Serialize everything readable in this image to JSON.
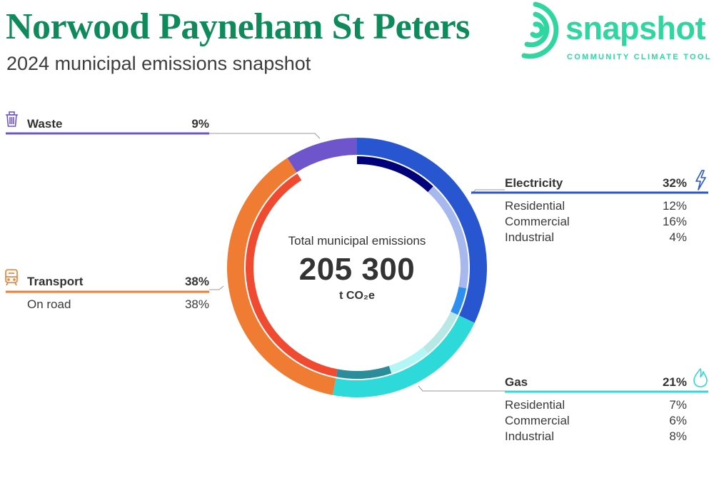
{
  "header": {
    "title": "Norwood Payneham St Peters",
    "subtitle": "2024 municipal emissions snapshot"
  },
  "brand": {
    "wordmark": "snapshot",
    "tagline": "COMMUNITY CLIMATE TOOL",
    "color": "#2fd6a0"
  },
  "chart_data": {
    "type": "pie",
    "subtype": "donut",
    "center": {
      "label": "Total municipal emissions",
      "value": "205 300",
      "unit": "t CO₂e"
    },
    "categories": [
      {
        "key": "electricity",
        "name": "Electricity",
        "percent": 32,
        "percent_label": "32%",
        "icon": "lightning-icon",
        "color": "#2855d0",
        "subcategories": [
          {
            "name": "Residential",
            "percent": 12,
            "percent_label": "12%",
            "color": "#00007a"
          },
          {
            "name": "Commercial",
            "percent": 16,
            "percent_label": "16%",
            "color": "#a7b8ef"
          },
          {
            "name": "Industrial",
            "percent": 4,
            "percent_label": "4%",
            "color": "#2d8ff0"
          }
        ]
      },
      {
        "key": "gas",
        "name": "Gas",
        "percent": 21,
        "percent_label": "21%",
        "icon": "flame-icon",
        "color": "#2ed9d9",
        "subcategories": [
          {
            "name": "Residential",
            "percent": 7,
            "percent_label": "7%",
            "color": "#b8e8e6"
          },
          {
            "name": "Commercial",
            "percent": 6,
            "percent_label": "6%",
            "color": "#b2f6f6"
          },
          {
            "name": "Industrial",
            "percent": 8,
            "percent_label": "8%",
            "color": "#2b8c9a"
          }
        ]
      },
      {
        "key": "transport",
        "name": "Transport",
        "percent": 38,
        "percent_label": "38%",
        "icon": "train-icon",
        "color": "#f07b32",
        "subcategories": [
          {
            "name": "On road",
            "percent": 38,
            "percent_label": "38%",
            "color": "#f04a30"
          }
        ]
      },
      {
        "key": "waste",
        "name": "Waste",
        "percent": 9,
        "percent_label": "9%",
        "icon": "trash-bin-icon",
        "color": "#6f55cc",
        "subcategories": []
      }
    ]
  }
}
